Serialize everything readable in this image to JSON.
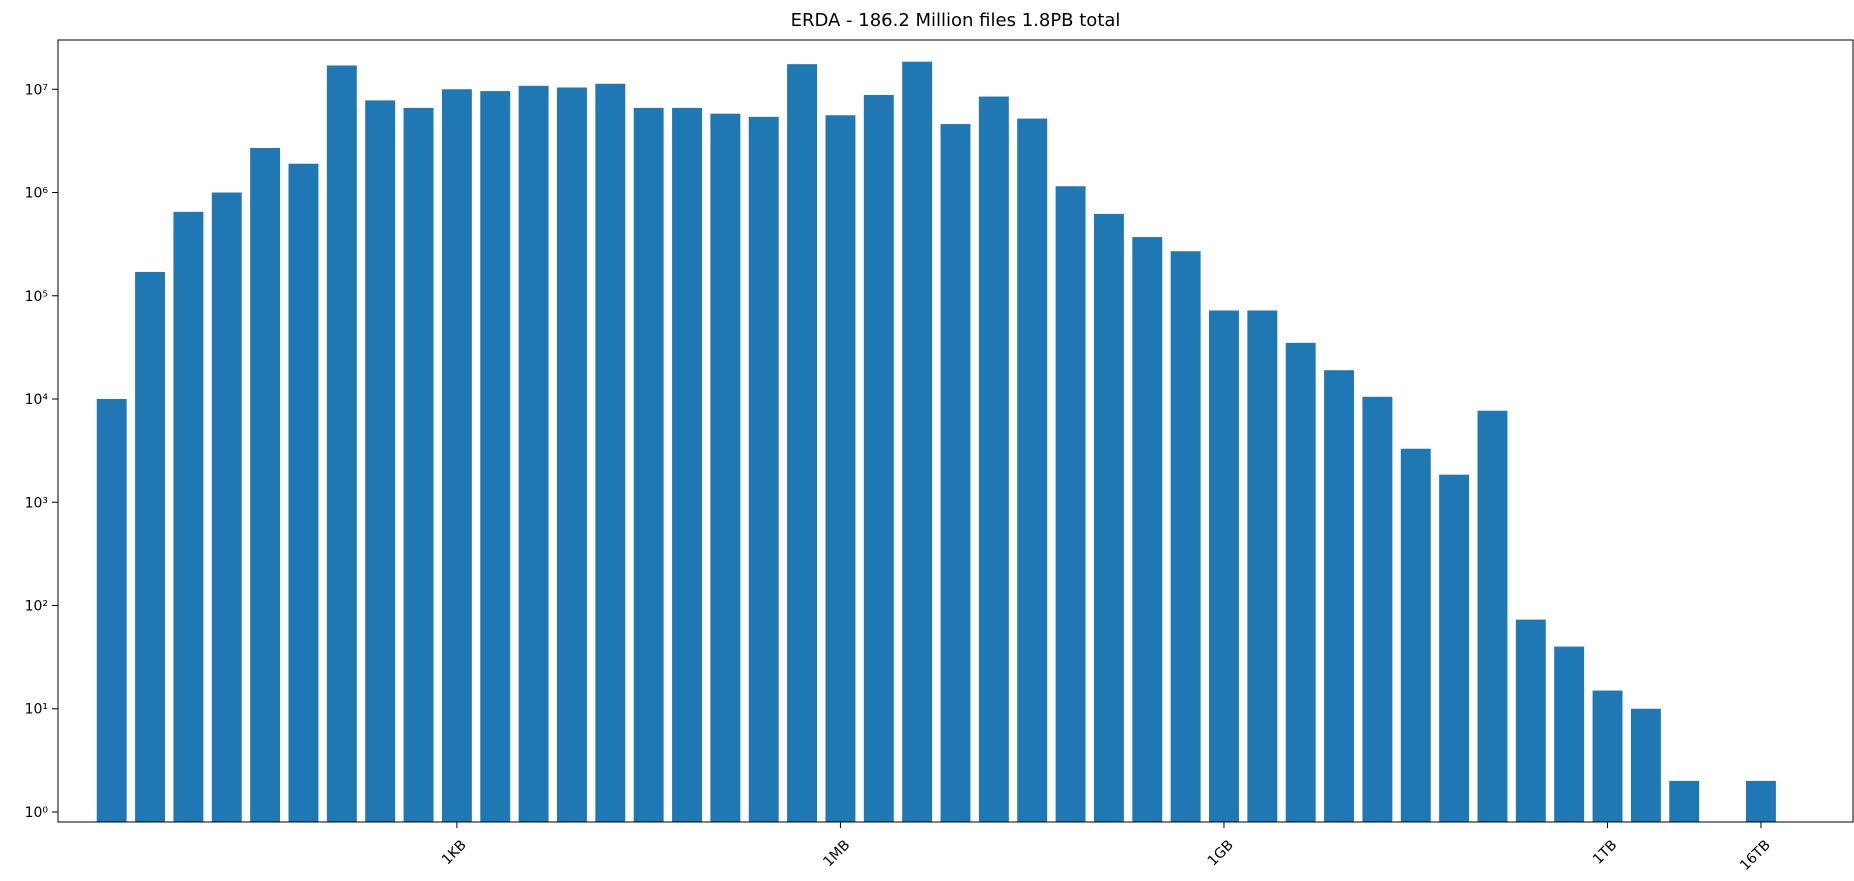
{
  "chart_data": {
    "type": "bar",
    "title": "ERDA - 186.2 Million files 1.8PB total",
    "xlabel": "",
    "ylabel": "",
    "yscale": "log",
    "ylim": [
      0.8,
      30000000
    ],
    "xlim": [
      -1.4,
      45.4
    ],
    "grid": false,
    "bar_color": "#1f77b4",
    "y_ticks": [
      {
        "value": 1,
        "label": "10⁰"
      },
      {
        "value": 10,
        "label": "10¹"
      },
      {
        "value": 100,
        "label": "10²"
      },
      {
        "value": 1000,
        "label": "10³"
      },
      {
        "value": 10000,
        "label": "10⁴"
      },
      {
        "value": 100000,
        "label": "10⁵"
      },
      {
        "value": 1000000,
        "label": "10⁶"
      },
      {
        "value": 10000000,
        "label": "10⁷"
      }
    ],
    "x_ticks": [
      {
        "position": 9,
        "label": "1KB"
      },
      {
        "position": 19,
        "label": "1MB"
      },
      {
        "position": 29,
        "label": "1GB"
      },
      {
        "position": 39,
        "label": "1TB"
      },
      {
        "position": 43,
        "label": "16TB"
      }
    ],
    "bars": [
      {
        "x": 0,
        "value": 10000
      },
      {
        "x": 1,
        "value": 170000
      },
      {
        "x": 2,
        "value": 650000
      },
      {
        "x": 3,
        "value": 1000000
      },
      {
        "x": 4,
        "value": 2700000
      },
      {
        "x": 5,
        "value": 1900000
      },
      {
        "x": 6,
        "value": 17000000
      },
      {
        "x": 7,
        "value": 7800000
      },
      {
        "x": 8,
        "value": 6600000
      },
      {
        "x": 9,
        "value": 10000000
      },
      {
        "x": 10,
        "value": 9600000
      },
      {
        "x": 11,
        "value": 10800000
      },
      {
        "x": 12,
        "value": 10400000
      },
      {
        "x": 13,
        "value": 11300000
      },
      {
        "x": 14,
        "value": 6600000
      },
      {
        "x": 15,
        "value": 6600000
      },
      {
        "x": 16,
        "value": 5800000
      },
      {
        "x": 17,
        "value": 5400000
      },
      {
        "x": 18,
        "value": 17500000
      },
      {
        "x": 19,
        "value": 5600000
      },
      {
        "x": 20,
        "value": 8800000
      },
      {
        "x": 21,
        "value": 18500000
      },
      {
        "x": 22,
        "value": 4600000
      },
      {
        "x": 23,
        "value": 8500000
      },
      {
        "x": 24,
        "value": 5200000
      },
      {
        "x": 25,
        "value": 1150000
      },
      {
        "x": 26,
        "value": 620000
      },
      {
        "x": 27,
        "value": 370000
      },
      {
        "x": 28,
        "value": 270000
      },
      {
        "x": 29,
        "value": 72000
      },
      {
        "x": 30,
        "value": 72000
      },
      {
        "x": 31,
        "value": 35000
      },
      {
        "x": 32,
        "value": 19000
      },
      {
        "x": 33,
        "value": 10500
      },
      {
        "x": 34,
        "value": 3300
      },
      {
        "x": 35,
        "value": 1850
      },
      {
        "x": 36,
        "value": 7700
      },
      {
        "x": 37,
        "value": 73
      },
      {
        "x": 38,
        "value": 40
      },
      {
        "x": 39,
        "value": 15
      },
      {
        "x": 40,
        "value": 10
      },
      {
        "x": 41,
        "value": 2
      },
      {
        "x": 43,
        "value": 2
      }
    ]
  }
}
